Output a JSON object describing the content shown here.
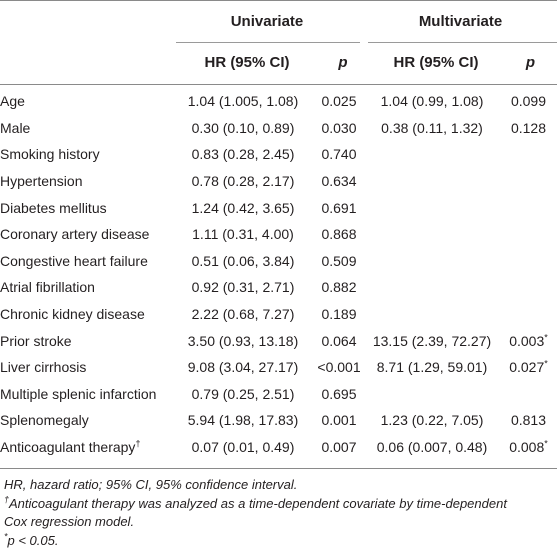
{
  "header": {
    "univariate": "Univariate",
    "multivariate": "Multivariate",
    "uni_hr": "HR (95% CI)",
    "uni_p": "p",
    "multi_hr": "HR (95% CI)",
    "multi_p": "p"
  },
  "rows": [
    {
      "variable": "Age",
      "sup": "",
      "uni_hr": "1.04 (1.005, 1.08)",
      "uni_p": "0.025",
      "multi_hr": "1.04 (0.99, 1.08)",
      "multi_p": "0.099",
      "multi_p_sup": ""
    },
    {
      "variable": "Male",
      "sup": "",
      "uni_hr": "0.30 (0.10, 0.89)",
      "uni_p": "0.030",
      "multi_hr": "0.38 (0.11, 1.32)",
      "multi_p": "0.128",
      "multi_p_sup": ""
    },
    {
      "variable": "Smoking history",
      "sup": "",
      "uni_hr": "0.83 (0.28, 2.45)",
      "uni_p": "0.740",
      "multi_hr": "",
      "multi_p": "",
      "multi_p_sup": ""
    },
    {
      "variable": "Hypertension",
      "sup": "",
      "uni_hr": "0.78 (0.28, 2.17)",
      "uni_p": "0.634",
      "multi_hr": "",
      "multi_p": "",
      "multi_p_sup": ""
    },
    {
      "variable": "Diabetes mellitus",
      "sup": "",
      "uni_hr": "1.24 (0.42, 3.65)",
      "uni_p": "0.691",
      "multi_hr": "",
      "multi_p": "",
      "multi_p_sup": ""
    },
    {
      "variable": "Coronary artery disease",
      "sup": "",
      "uni_hr": "1.11 (0.31, 4.00)",
      "uni_p": "0.868",
      "multi_hr": "",
      "multi_p": "",
      "multi_p_sup": ""
    },
    {
      "variable": "Congestive heart failure",
      "sup": "",
      "uni_hr": "0.51 (0.06, 3.84)",
      "uni_p": "0.509",
      "multi_hr": "",
      "multi_p": "",
      "multi_p_sup": ""
    },
    {
      "variable": "Atrial fibrillation",
      "sup": "",
      "uni_hr": "0.92 (0.31, 2.71)",
      "uni_p": "0.882",
      "multi_hr": "",
      "multi_p": "",
      "multi_p_sup": ""
    },
    {
      "variable": "Chronic kidney disease",
      "sup": "",
      "uni_hr": "2.22 (0.68, 7.27)",
      "uni_p": "0.189",
      "multi_hr": "",
      "multi_p": "",
      "multi_p_sup": ""
    },
    {
      "variable": "Prior stroke",
      "sup": "",
      "uni_hr": "3.50 (0.93, 13.18)",
      "uni_p": "0.064",
      "multi_hr": "13.15 (2.39, 72.27)",
      "multi_p": "0.003",
      "multi_p_sup": "*"
    },
    {
      "variable": "Liver cirrhosis",
      "sup": "",
      "uni_hr": "9.08 (3.04, 27.17)",
      "uni_p": "<0.001",
      "multi_hr": "8.71 (1.29, 59.01)",
      "multi_p": "0.027",
      "multi_p_sup": "*"
    },
    {
      "variable": "Multiple splenic infarction",
      "sup": "",
      "uni_hr": "0.79 (0.25, 2.51)",
      "uni_p": "0.695",
      "multi_hr": "",
      "multi_p": "",
      "multi_p_sup": ""
    },
    {
      "variable": "Splenomegaly",
      "sup": "",
      "uni_hr": "5.94 (1.98, 17.83)",
      "uni_p": "0.001",
      "multi_hr": "1.23 (0.22, 7.05)",
      "multi_p": "0.813",
      "multi_p_sup": ""
    },
    {
      "variable": "Anticoagulant therapy",
      "sup": "†",
      "uni_hr": "0.07 (0.01, 0.49)",
      "uni_p": "0.007",
      "multi_hr": "0.06 (0.007, 0.48)",
      "multi_p": "0.008",
      "multi_p_sup": "*"
    }
  ],
  "notes": {
    "abbrev": "HR, hazard ratio; 95% CI, 95% confidence interval.",
    "dagger_mark": "†",
    "dagger_text": "Anticoagulant therapy was analyzed as a time-dependent covariate by time-dependent",
    "dagger_text2": "Cox regression model.",
    "star_mark": "*",
    "star_text": "p < 0.05."
  }
}
